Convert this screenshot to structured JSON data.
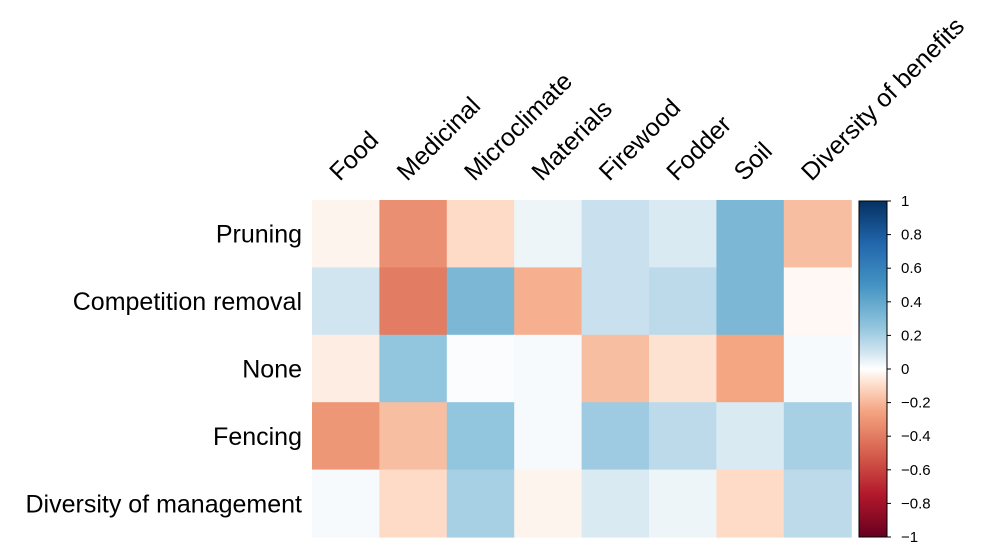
{
  "chart_data": {
    "type": "heatmap",
    "title": "",
    "xlabel": "",
    "ylabel": "",
    "columns": [
      "Food",
      "Medicinal",
      "Microclimate",
      "Materials",
      "Firewood",
      "Fodder",
      "Soil",
      "Diversity of benefits"
    ],
    "rows": [
      "Pruning",
      "Competition removal",
      "None",
      "Fencing",
      "Diversity of management"
    ],
    "values": [
      [
        -0.03,
        -0.33,
        -0.1,
        0.04,
        0.12,
        0.08,
        0.32,
        -0.18
      ],
      [
        0.1,
        -0.4,
        0.32,
        -0.22,
        0.12,
        0.15,
        0.32,
        -0.02
      ],
      [
        -0.05,
        0.25,
        0.01,
        0.02,
        -0.18,
        -0.08,
        -0.25,
        0.02
      ],
      [
        -0.3,
        -0.18,
        0.25,
        0.02,
        0.22,
        0.15,
        0.08,
        0.2
      ],
      [
        0.02,
        -0.1,
        0.2,
        -0.03,
        0.08,
        0.04,
        -0.1,
        0.15
      ]
    ],
    "colorbar": {
      "min": -1,
      "max": 1,
      "ticks": [
        1,
        0.8,
        0.6,
        0.4,
        0.2,
        0,
        -0.2,
        -0.4,
        -0.6,
        -0.8,
        -1
      ],
      "tick_labels": [
        "1",
        "0.8",
        "0.6",
        "0.4",
        "0.2",
        "0",
        "−0.2",
        "−0.4",
        "−0.6",
        "−0.8",
        "−1"
      ]
    },
    "color_stops": [
      {
        "v": -1.0,
        "color": "#67001f"
      },
      {
        "v": -0.75,
        "color": "#b2182b"
      },
      {
        "v": -0.5,
        "color": "#d6604d"
      },
      {
        "v": -0.25,
        "color": "#f4a582"
      },
      {
        "v": -0.1,
        "color": "#fddbc7"
      },
      {
        "v": 0.0,
        "color": "#ffffff"
      },
      {
        "v": 0.1,
        "color": "#d1e5f0"
      },
      {
        "v": 0.25,
        "color": "#92c5de"
      },
      {
        "v": 0.5,
        "color": "#4393c3"
      },
      {
        "v": 0.75,
        "color": "#2166ac"
      },
      {
        "v": 1.0,
        "color": "#053061"
      }
    ]
  }
}
